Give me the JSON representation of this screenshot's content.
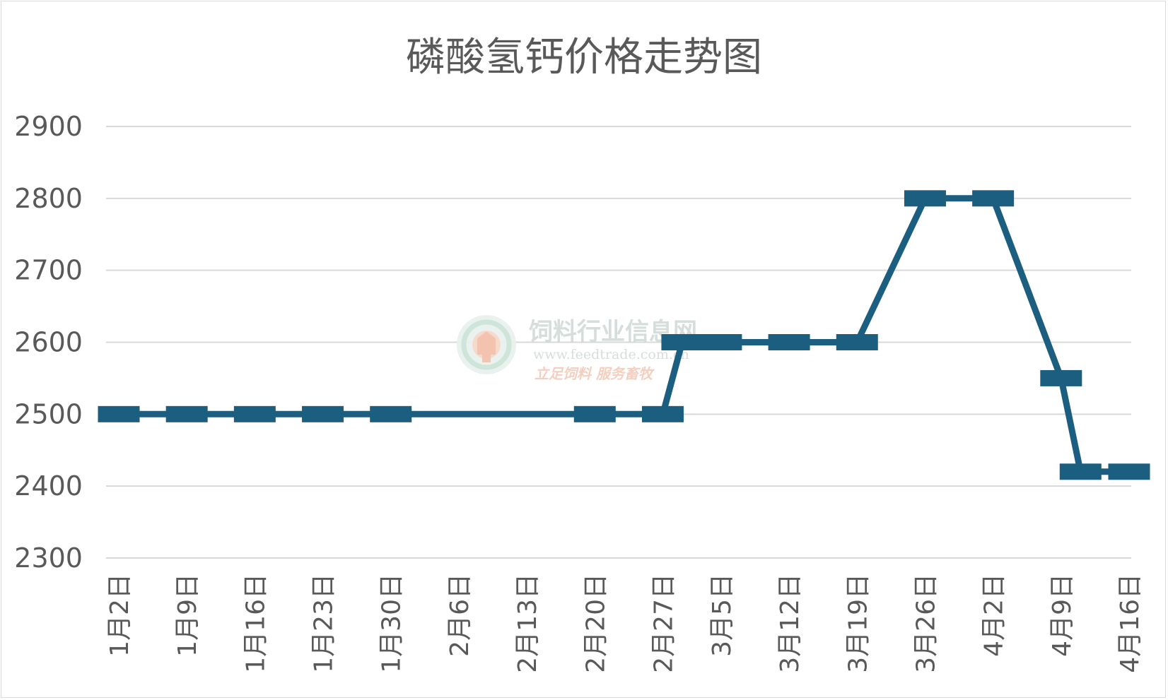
{
  "chart_data": {
    "type": "line",
    "title": "磷酸氢钙价格走势图",
    "xlabel": "",
    "ylabel": "",
    "ylim": [
      2300,
      2900
    ],
    "yticks": [
      2300,
      2400,
      2500,
      2600,
      2700,
      2800,
      2900
    ],
    "x_tick_labels": [
      "1月2日",
      "1月9日",
      "1月16日",
      "1月23日",
      "1月30日",
      "2月6日",
      "2月13日",
      "2月20日",
      "2月27日",
      "3月5日",
      "3月12日",
      "3月19日",
      "3月26日",
      "4月2日",
      "4月9日",
      "4月16日"
    ],
    "grid": true,
    "legend": "none",
    "color": "#1b5e80",
    "series": [
      {
        "points": [
          {
            "x": "1月2日",
            "y": 2500
          },
          {
            "x": "1月9日",
            "y": 2500
          },
          {
            "x": "1月16日",
            "y": 2500
          },
          {
            "x": "1月23日",
            "y": 2500
          },
          {
            "x": "1月30日",
            "y": 2500
          },
          {
            "x": "2月20日",
            "y": 2500
          },
          {
            "x": "2月27日",
            "y": 2500
          },
          {
            "x": "3月1日",
            "y": 2600
          },
          {
            "x": "3月5日",
            "y": 2600
          },
          {
            "x": "3月12日",
            "y": 2600
          },
          {
            "x": "3月19日",
            "y": 2600
          },
          {
            "x": "3月26日",
            "y": 2800
          },
          {
            "x": "4月2日",
            "y": 2800
          },
          {
            "x": "4月9日",
            "y": 2550
          },
          {
            "x": "4月11日",
            "y": 2420
          },
          {
            "x": "4月16日",
            "y": 2420
          }
        ]
      }
    ]
  },
  "watermark": {
    "name": "饲料行业信息网",
    "url": "www.feedtrade.com.cn",
    "slogan": "立足饲料   服务畜牧"
  }
}
